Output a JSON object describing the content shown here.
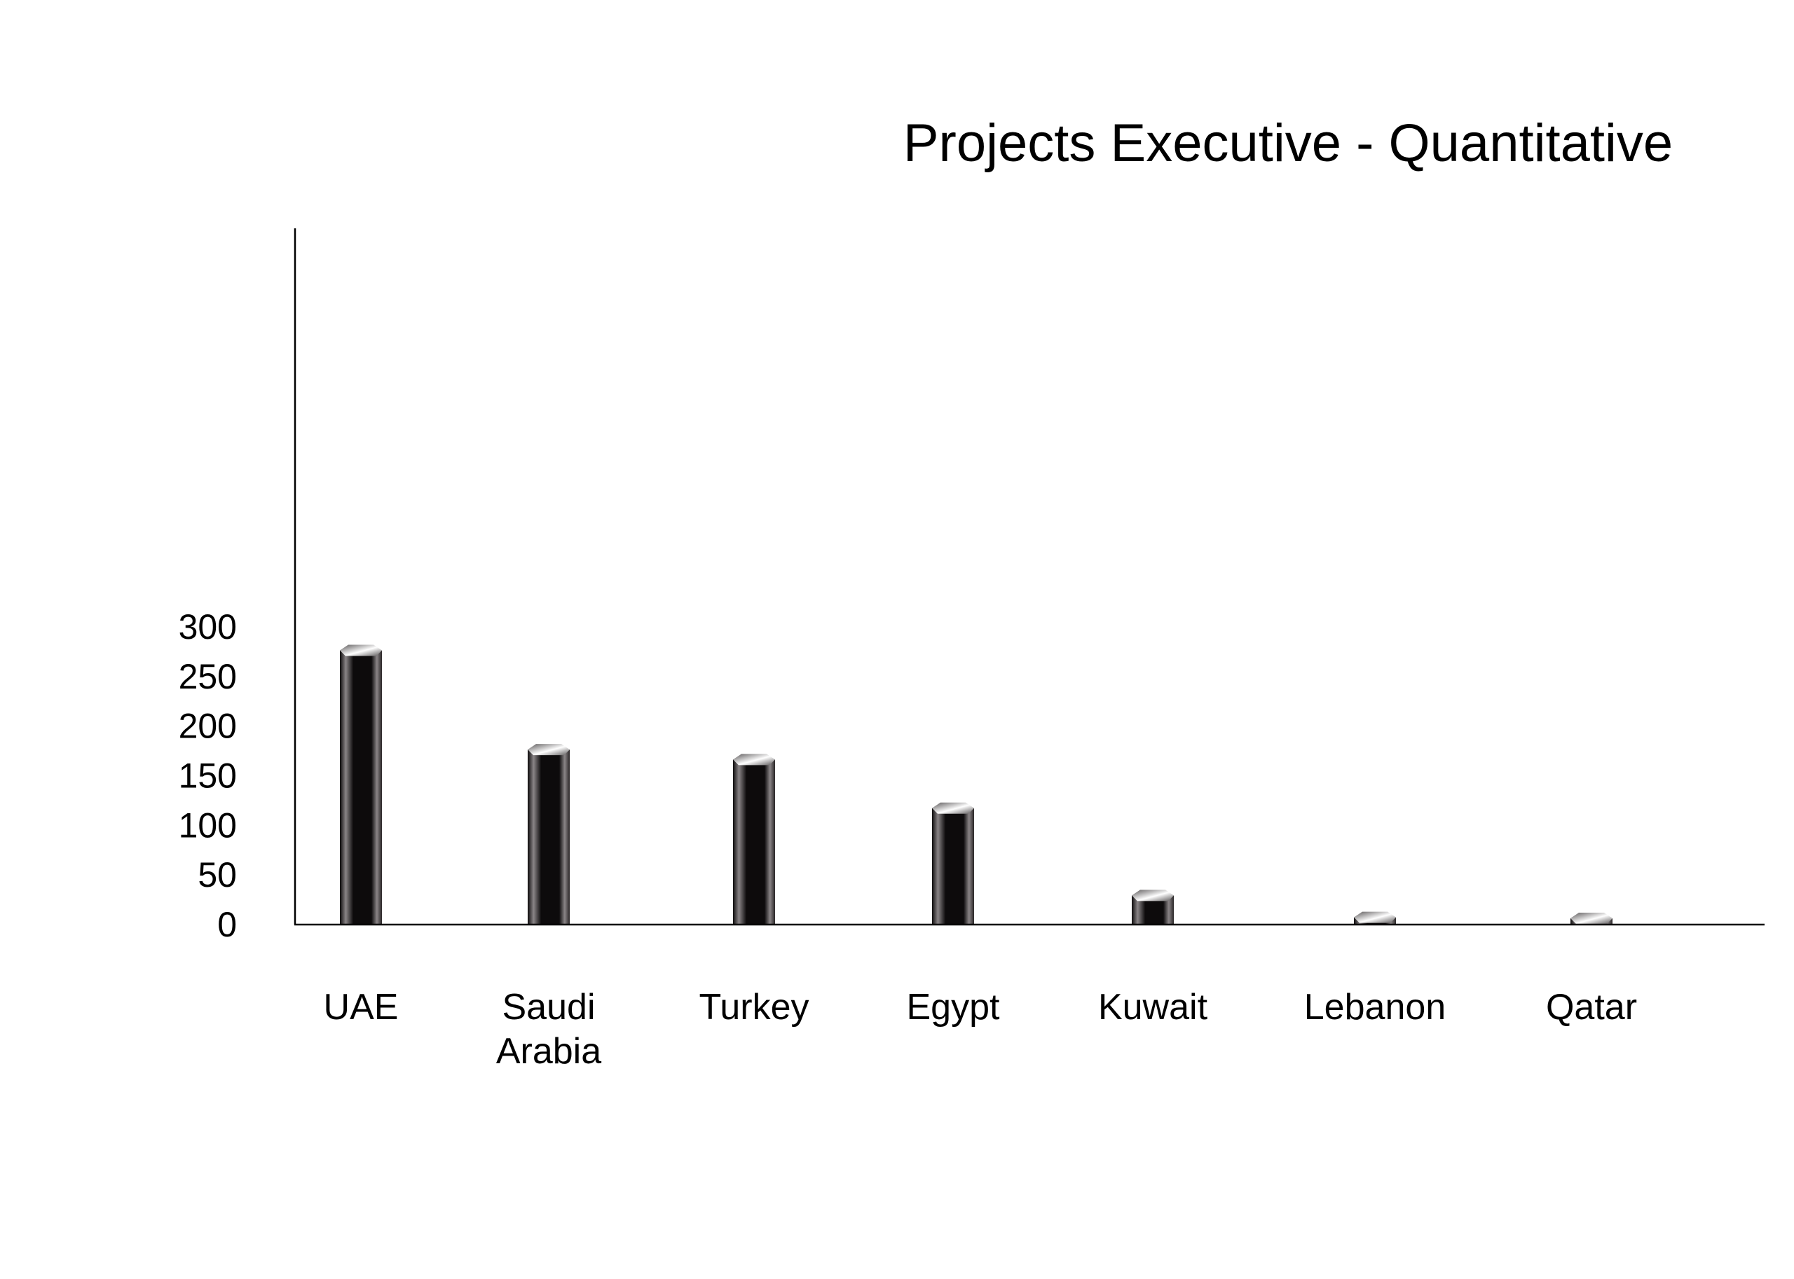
{
  "chart_data": {
    "type": "bar",
    "title": "Projects Executive - Quantitative",
    "xlabel": "",
    "ylabel": "",
    "categories": [
      "UAE",
      "Saudi Arabia",
      "Turkey",
      "Egypt",
      "Kuwait",
      "Lebanon",
      "Qatar"
    ],
    "category_lines": [
      [
        "UAE"
      ],
      [
        "Saudi",
        "Arabia"
      ],
      [
        "Turkey"
      ],
      [
        "Egypt"
      ],
      [
        "Kuwait"
      ],
      [
        "Lebanon"
      ],
      [
        "Qatar"
      ]
    ],
    "values": [
      282,
      182,
      172,
      123,
      35,
      13,
      12
    ],
    "ylim": [
      0,
      350
    ],
    "yticks": [
      0,
      50,
      100,
      150,
      200,
      250,
      300
    ],
    "grid": false,
    "legend": "none",
    "colors": {
      "bar_dark": "#0d0b0c",
      "bar_mid": "#2a2627",
      "bar_light": "#8a8587",
      "cap_light": "#ffffff",
      "cap_dark": "#5a5758",
      "axis": "#000000"
    }
  }
}
